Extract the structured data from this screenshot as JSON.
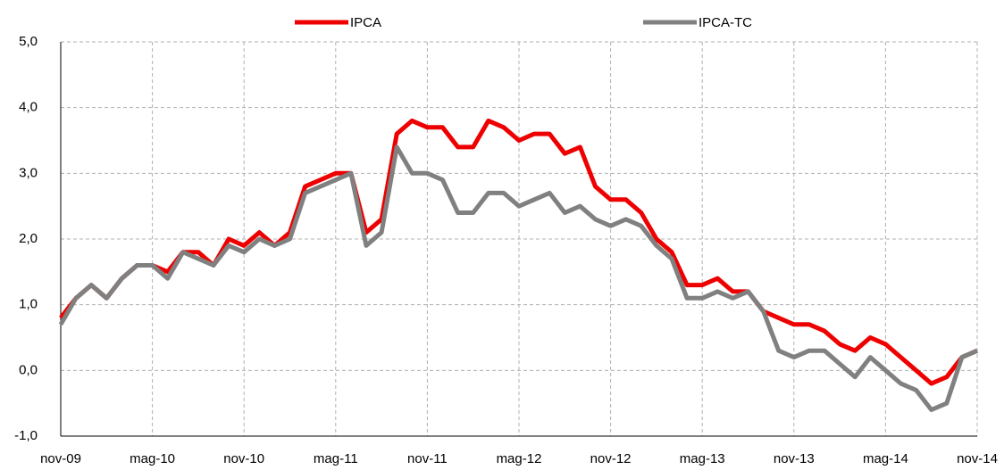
{
  "chart_data": {
    "type": "line",
    "categories": [
      "nov-09",
      null,
      null,
      null,
      null,
      null,
      "mag-10",
      null,
      null,
      null,
      null,
      null,
      "nov-10",
      null,
      null,
      null,
      null,
      null,
      "mag-11",
      null,
      null,
      null,
      null,
      null,
      "nov-11",
      null,
      null,
      null,
      null,
      null,
      "mag-12",
      null,
      null,
      null,
      null,
      null,
      "nov-12",
      null,
      null,
      null,
      null,
      null,
      "mag-13",
      null,
      null,
      null,
      null,
      null,
      "nov-13",
      null,
      null,
      null,
      null,
      null,
      "mag-14",
      null,
      null,
      null,
      null,
      null,
      "nov-14"
    ],
    "series": [
      {
        "name": "IPCA",
        "color": "#ee0000",
        "values": [
          0.8,
          1.1,
          1.3,
          1.1,
          1.4,
          1.6,
          1.6,
          1.5,
          1.8,
          1.8,
          1.6,
          2.0,
          1.9,
          2.1,
          1.9,
          2.1,
          2.8,
          2.9,
          3.0,
          3.0,
          2.1,
          2.3,
          3.6,
          3.8,
          3.7,
          3.7,
          3.4,
          3.4,
          3.8,
          3.7,
          3.5,
          3.6,
          3.6,
          3.3,
          3.4,
          2.8,
          2.6,
          2.6,
          2.4,
          2.0,
          1.8,
          1.3,
          1.3,
          1.4,
          1.2,
          1.2,
          0.9,
          0.8,
          0.7,
          0.7,
          0.6,
          0.4,
          0.3,
          0.5,
          0.4,
          0.2,
          0.0,
          -0.2,
          -0.1,
          0.2,
          0.3
        ]
      },
      {
        "name": "IPCA-TC",
        "color": "#808080",
        "values": [
          0.7,
          1.1,
          1.3,
          1.1,
          1.4,
          1.6,
          1.6,
          1.4,
          1.8,
          1.7,
          1.6,
          1.9,
          1.8,
          2.0,
          1.9,
          2.0,
          2.7,
          2.8,
          2.9,
          3.0,
          1.9,
          2.1,
          3.4,
          3.0,
          3.0,
          2.9,
          2.4,
          2.4,
          2.7,
          2.7,
          2.5,
          2.6,
          2.7,
          2.4,
          2.5,
          2.3,
          2.2,
          2.3,
          2.2,
          1.9,
          1.7,
          1.1,
          1.1,
          1.2,
          1.1,
          1.2,
          0.9,
          0.3,
          0.2,
          0.3,
          0.3,
          0.1,
          -0.1,
          0.2,
          0.0,
          -0.2,
          -0.3,
          -0.6,
          -0.5,
          0.2,
          0.3
        ]
      }
    ],
    "ylim": [
      -1,
      5
    ],
    "yticks": [
      {
        "value": -1,
        "label": "-1,0"
      },
      {
        "value": 0,
        "label": "0,0"
      },
      {
        "value": 1,
        "label": "1,0"
      },
      {
        "value": 2,
        "label": "2,0"
      },
      {
        "value": 3,
        "label": "3,0"
      },
      {
        "value": 4,
        "label": "4,0"
      },
      {
        "value": 5,
        "label": "5,0"
      }
    ],
    "grid": true
  }
}
